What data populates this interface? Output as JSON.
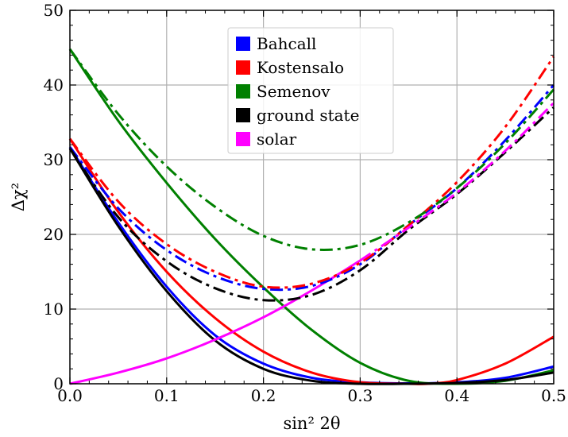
{
  "chart_data": {
    "type": "line",
    "xlabel": "sin² 2θ",
    "ylabel": "Δχ²",
    "xlim": [
      0.0,
      0.5
    ],
    "ylim": [
      0,
      50
    ],
    "x_ticks": [
      0.0,
      0.1,
      0.2,
      0.3,
      0.4,
      0.5
    ],
    "x_tick_labels": [
      "0.0",
      "0.1",
      "0.2",
      "0.3",
      "0.4",
      "0.5"
    ],
    "y_ticks": [
      0,
      10,
      20,
      30,
      40,
      50
    ],
    "y_tick_labels": [
      "0",
      "10",
      "20",
      "30",
      "40",
      "50"
    ],
    "grid": true,
    "legend_position": "top-center",
    "legend": [
      {
        "label": "Bahcall",
        "color": "#0000ff"
      },
      {
        "label": "Kostensalo",
        "color": "#ff0000"
      },
      {
        "label": "Semenov",
        "color": "#008000"
      },
      {
        "label": "ground state",
        "color": "#000000"
      },
      {
        "label": "solar",
        "color": "#ff00ff"
      }
    ],
    "series": [
      {
        "color": "#0000ff",
        "style": "solid",
        "x": [
          0.0,
          0.05,
          0.1,
          0.15,
          0.2,
          0.25,
          0.3,
          0.35,
          0.4,
          0.45,
          0.5
        ],
        "y": [
          31.7,
          21.6,
          13.0,
          6.5,
          2.7,
          0.8,
          0.2,
          0.05,
          0.2,
          0.8,
          2.3
        ]
      },
      {
        "color": "#ff0000",
        "style": "solid",
        "x": [
          0.0,
          0.05,
          0.1,
          0.15,
          0.2,
          0.25,
          0.3,
          0.35,
          0.37,
          0.4,
          0.45,
          0.5
        ],
        "y": [
          32.8,
          23.0,
          15.0,
          8.8,
          4.3,
          1.5,
          0.2,
          0.0,
          0.0,
          0.5,
          2.7,
          6.3
        ]
      },
      {
        "color": "#008000",
        "style": "solid",
        "x": [
          0.0,
          0.05,
          0.1,
          0.15,
          0.2,
          0.25,
          0.3,
          0.35,
          0.4,
          0.45,
          0.5
        ],
        "y": [
          44.8,
          35.2,
          26.9,
          19.4,
          12.9,
          7.2,
          2.8,
          0.4,
          0.0,
          0.4,
          1.8
        ]
      },
      {
        "color": "#000000",
        "style": "solid",
        "x": [
          0.0,
          0.05,
          0.1,
          0.15,
          0.2,
          0.25,
          0.3,
          0.35,
          0.4,
          0.45,
          0.5
        ],
        "y": [
          31.5,
          21.1,
          12.4,
          5.8,
          2.0,
          0.4,
          0.0,
          0.0,
          0.1,
          0.5,
          1.5
        ]
      },
      {
        "color": "#ff00ff",
        "style": "solid",
        "x": [
          0.0,
          0.05,
          0.1,
          0.15,
          0.2,
          0.25,
          0.3
        ],
        "y": [
          0.0,
          1.5,
          3.4,
          5.9,
          8.9,
          12.5,
          16.5
        ]
      },
      {
        "color": "#0000ff",
        "style": "dashdot",
        "x": [
          0.0,
          0.05,
          0.1,
          0.15,
          0.2,
          0.25,
          0.3,
          0.35,
          0.4,
          0.45,
          0.5
        ],
        "y": [
          31.7,
          23.5,
          17.9,
          14.4,
          12.7,
          13.1,
          16.0,
          21.2,
          26.2,
          32.6,
          40.0
        ]
      },
      {
        "color": "#ff0000",
        "style": "dashdot",
        "x": [
          0.0,
          0.05,
          0.1,
          0.15,
          0.2,
          0.25,
          0.3,
          0.35,
          0.4,
          0.45,
          0.5
        ],
        "y": [
          32.8,
          24.4,
          18.7,
          15.0,
          13.0,
          13.4,
          16.2,
          21.2,
          27.0,
          34.4,
          43.8
        ]
      },
      {
        "color": "#008000",
        "style": "dashdot",
        "x": [
          0.0,
          0.05,
          0.1,
          0.15,
          0.2,
          0.25,
          0.3,
          0.35,
          0.4,
          0.45,
          0.5
        ],
        "y": [
          44.8,
          36.1,
          29.1,
          23.7,
          19.8,
          18.0,
          18.6,
          21.6,
          26.2,
          32.2,
          39.4
        ]
      },
      {
        "color": "#000000",
        "style": "dashdot",
        "x": [
          0.0,
          0.05,
          0.1,
          0.15,
          0.2,
          0.25,
          0.3,
          0.35,
          0.4,
          0.45,
          0.5
        ],
        "y": [
          31.5,
          22.3,
          16.4,
          12.8,
          11.2,
          11.9,
          15.2,
          20.6,
          25.4,
          31.0,
          37.0
        ]
      },
      {
        "color": "#ff00ff",
        "style": "dashdot",
        "x": [
          0.3,
          0.35,
          0.4,
          0.45,
          0.5
        ],
        "y": [
          16.5,
          20.9,
          25.6,
          31.2,
          37.6
        ]
      }
    ]
  }
}
